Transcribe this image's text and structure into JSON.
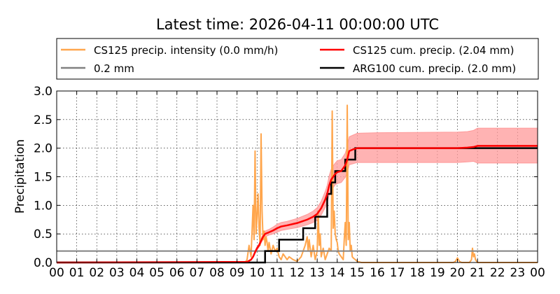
{
  "chart_data": {
    "type": "line",
    "title": "Latest time: 2026-04-11 00:00:00 UTC",
    "xlabel": "",
    "ylabel": "Precipitation",
    "xlim": [
      0,
      24
    ],
    "ylim": [
      0,
      3.0
    ],
    "x_tick_values": [
      0,
      1,
      2,
      3,
      4,
      5,
      6,
      7,
      8,
      9,
      10,
      11,
      12,
      13,
      14,
      15,
      16,
      17,
      18,
      19,
      20,
      21,
      22,
      23,
      24
    ],
    "x_tick_labels": [
      "00",
      "01",
      "02",
      "03",
      "04",
      "05",
      "06",
      "07",
      "08",
      "09",
      "10",
      "11",
      "12",
      "13",
      "14",
      "15",
      "16",
      "17",
      "18",
      "19",
      "20",
      "21",
      "22",
      "23",
      "00"
    ],
    "y_tick_values": [
      0.0,
      0.5,
      1.0,
      1.5,
      2.0,
      2.5,
      3.0
    ],
    "y_tick_labels": [
      "0.0",
      "0.5",
      "1.0",
      "1.5",
      "2.0",
      "2.5",
      "3.0"
    ],
    "grid": true,
    "legend_placement": "top",
    "legend_columns": 2,
    "colors": {
      "intensity": "#ffa64d",
      "threshold": "#808080",
      "cs125_cum": "#ff0000",
      "cs125_band": "#ff9999",
      "arg100_cum": "#000000"
    },
    "series": [
      {
        "key": "intensity",
        "name": "CS125 precip. intensity (0.0 mm/h)",
        "color": "#ffa64d",
        "x": [
          0,
          9.4,
          9.5,
          9.6,
          9.7,
          9.8,
          9.85,
          9.9,
          9.95,
          10.0,
          10.05,
          10.1,
          10.15,
          10.2,
          10.25,
          10.3,
          10.35,
          10.4,
          10.45,
          10.5,
          10.55,
          10.6,
          10.7,
          10.8,
          10.9,
          11.0,
          11.1,
          11.2,
          11.3,
          11.4,
          11.5,
          11.6,
          11.8,
          12.0,
          12.2,
          12.4,
          12.5,
          12.55,
          12.6,
          12.7,
          12.8,
          12.9,
          13.0,
          13.05,
          13.1,
          13.15,
          13.2,
          13.3,
          13.4,
          13.5,
          13.55,
          13.6,
          13.7,
          13.75,
          13.8,
          13.85,
          13.9,
          13.95,
          14.0,
          14.05,
          14.1,
          14.2,
          14.3,
          14.35,
          14.4,
          14.45,
          14.5,
          14.55,
          14.6,
          14.65,
          14.7,
          14.75,
          14.8,
          14.9,
          15.0,
          15.1,
          15.2,
          19.8,
          19.9,
          20.0,
          20.05,
          20.1,
          20.2,
          20.6,
          20.7,
          20.75,
          20.8,
          20.85,
          20.9,
          21.0,
          24
        ],
        "y": [
          0,
          0,
          0.05,
          0.3,
          0.1,
          1.0,
          0.4,
          1.95,
          0.5,
          0.8,
          1.2,
          0.6,
          0.3,
          2.25,
          0.9,
          0.4,
          0.55,
          0.3,
          0.45,
          0.35,
          0.2,
          0.35,
          0.15,
          0.3,
          0.2,
          0.25,
          0.1,
          0.05,
          0.15,
          0.1,
          0.05,
          0.1,
          0.05,
          0.02,
          0.1,
          0.3,
          0.45,
          0.2,
          0.4,
          0.1,
          0.3,
          0.05,
          0.2,
          0.9,
          0.3,
          0.5,
          0.1,
          0.25,
          0.05,
          0.15,
          0.2,
          0.25,
          0.2,
          2.65,
          0.6,
          0.9,
          0.5,
          0.4,
          0.35,
          0.2,
          0.15,
          0.1,
          0.05,
          0.4,
          0.7,
          0.3,
          2.75,
          0.4,
          0.7,
          0.2,
          0.3,
          0.1,
          0.08,
          0.05,
          0.02,
          0.01,
          0,
          0,
          0.02,
          0.08,
          0.05,
          0.02,
          0,
          0,
          0.05,
          0.25,
          0.1,
          0.15,
          0.05,
          0,
          0
        ]
      },
      {
        "key": "threshold",
        "name": "0.2 mm",
        "color": "#808080",
        "x": [
          0,
          24
        ],
        "y": [
          0.2,
          0.2
        ]
      },
      {
        "key": "cs125_cum",
        "name": "CS125 cum. precip. (2.04 mm)",
        "color": "#ff0000",
        "x": [
          0,
          9.5,
          9.7,
          9.8,
          9.9,
          10.0,
          10.1,
          10.2,
          10.3,
          10.4,
          10.6,
          10.8,
          11.0,
          11.2,
          11.5,
          12.0,
          12.5,
          12.8,
          13.0,
          13.2,
          13.4,
          13.5,
          13.6,
          13.7,
          13.8,
          13.9,
          14.0,
          14.2,
          14.4,
          14.5,
          14.6,
          14.8,
          15.0,
          16.0,
          20.0,
          20.5,
          20.8,
          21.0,
          24
        ],
        "y": [
          0,
          0.01,
          0.05,
          0.1,
          0.18,
          0.25,
          0.3,
          0.38,
          0.45,
          0.5,
          0.53,
          0.56,
          0.6,
          0.63,
          0.65,
          0.69,
          0.75,
          0.8,
          0.85,
          0.95,
          1.1,
          1.2,
          1.35,
          1.45,
          1.5,
          1.55,
          1.58,
          1.6,
          1.7,
          1.8,
          1.95,
          1.98,
          2.0,
          2.0,
          2.0,
          2.01,
          2.02,
          2.04,
          2.04
        ],
        "band_lower": [
          0,
          0.01,
          0.04,
          0.09,
          0.16,
          0.22,
          0.27,
          0.34,
          0.4,
          0.45,
          0.48,
          0.5,
          0.53,
          0.56,
          0.58,
          0.61,
          0.66,
          0.7,
          0.74,
          0.83,
          0.96,
          1.05,
          1.18,
          1.27,
          1.31,
          1.36,
          1.38,
          1.4,
          1.49,
          1.57,
          1.71,
          1.73,
          1.75,
          1.75,
          1.75,
          1.76,
          1.77,
          1.74,
          1.74
        ],
        "band_upper": [
          0,
          0.01,
          0.06,
          0.11,
          0.2,
          0.28,
          0.33,
          0.42,
          0.5,
          0.55,
          0.58,
          0.62,
          0.67,
          0.7,
          0.72,
          0.77,
          0.84,
          0.9,
          0.96,
          1.07,
          1.24,
          1.35,
          1.52,
          1.63,
          1.69,
          1.74,
          1.78,
          1.8,
          1.91,
          2.03,
          2.2,
          2.23,
          2.26,
          2.27,
          2.28,
          2.29,
          2.31,
          2.35,
          2.35
        ]
      },
      {
        "key": "arg100_cum",
        "name": "ARG100 cum. precip. (2.0 mm)",
        "color": "#000000",
        "step": true,
        "x": [
          0,
          10.4,
          11.1,
          12.3,
          12.9,
          13.5,
          13.7,
          13.9,
          14.4,
          14.9,
          24
        ],
        "y": [
          0,
          0.2,
          0.4,
          0.6,
          0.8,
          1.2,
          1.4,
          1.6,
          1.8,
          2.0,
          2.0
        ]
      }
    ]
  }
}
